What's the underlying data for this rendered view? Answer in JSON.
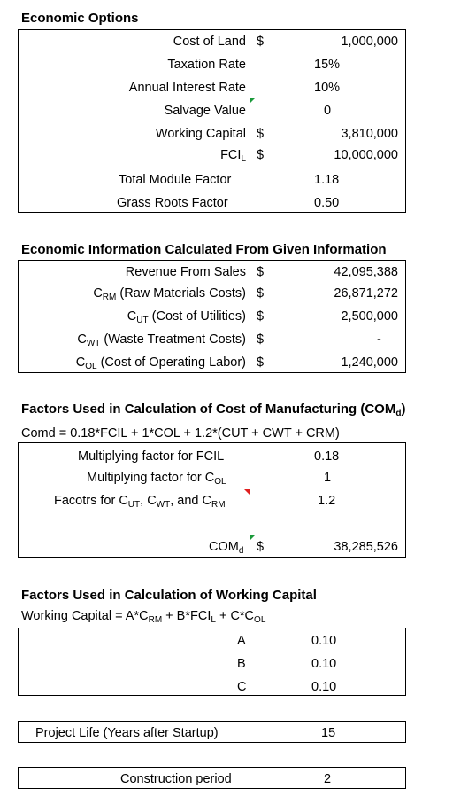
{
  "economic_options": {
    "title": "Economic Options",
    "rows": [
      {
        "label": "Cost of Land",
        "unit": "$",
        "value": "1,000,000"
      },
      {
        "label": "Taxation Rate",
        "unit": "",
        "value": "15%"
      },
      {
        "label": "Annual Interest Rate",
        "unit": "",
        "value": "10%"
      },
      {
        "label": "Salvage Value",
        "unit": "",
        "value": "0"
      },
      {
        "label": "Working Capital",
        "unit": "$",
        "value": "3,810,000"
      },
      {
        "label_main": "FCI",
        "label_sub": "L",
        "unit": "$",
        "value": "10,000,000"
      },
      {
        "label": "Total Module Factor",
        "unit": "",
        "value": "1.18"
      },
      {
        "label": "Grass Roots Factor",
        "unit": "",
        "value": "0.50"
      }
    ]
  },
  "economic_info": {
    "title": "Economic Information Calculated From Given Information",
    "rows": [
      {
        "prefix": "",
        "sub": "",
        "label": "Revenue From Sales",
        "unit": "$",
        "value": "42,095,388"
      },
      {
        "prefix": "C",
        "sub": "RM",
        "label": " (Raw Materials Costs)",
        "unit": "$",
        "value": "26,871,272"
      },
      {
        "prefix": "C",
        "sub": "UT",
        "label": " (Cost of Utilities)",
        "unit": "$",
        "value": "2,500,000"
      },
      {
        "prefix": "C",
        "sub": "WT",
        "label": " (Waste Treatment Costs)",
        "unit": "$",
        "value": "-"
      },
      {
        "prefix": "C",
        "sub": "OL",
        "label": " (Cost of Operating Labor)",
        "unit": "$",
        "value": "1,240,000"
      }
    ]
  },
  "com_factors": {
    "title_main": "Factors Used in Calculation of Cost of Manufacturing (COM",
    "title_sub": "d",
    "title_end": ")",
    "formula": "Comd = 0.18*FCIL + 1*COL + 1.2*(CUT + CWT + CRM)",
    "row1_label": "Multiplying factor for FCIL",
    "row1_value": "0.18",
    "row2_label": "Multiplying factor for C",
    "row2_sub": "OL",
    "row2_value": "1",
    "row3_a": "Facotrs for C",
    "row3_sub1": "UT",
    "row3_b": ", C",
    "row3_sub2": "WT",
    "row3_c": ", and C",
    "row3_sub3": "RM",
    "row3_value": "1.2",
    "com_label": "COM",
    "com_sub": "d",
    "com_unit": "$",
    "com_value": "38,285,526"
  },
  "wc_factors": {
    "title": "Factors Used in Calculation of  Working Capital",
    "f_pre": "Working Capital = A*C",
    "f_sub1": "RM",
    "f_mid1": " + B*FCI",
    "f_sub2": "L",
    "f_mid2": " + C*C",
    "f_sub3": "OL",
    "rows": [
      {
        "label": "A",
        "value": "0.10"
      },
      {
        "label": "B",
        "value": "0.10"
      },
      {
        "label": "C",
        "value": "0.10"
      }
    ]
  },
  "project_life": {
    "label": "Project Life (Years after Startup)",
    "value": "15"
  },
  "construction": {
    "label": "Construction period",
    "value": "2"
  }
}
